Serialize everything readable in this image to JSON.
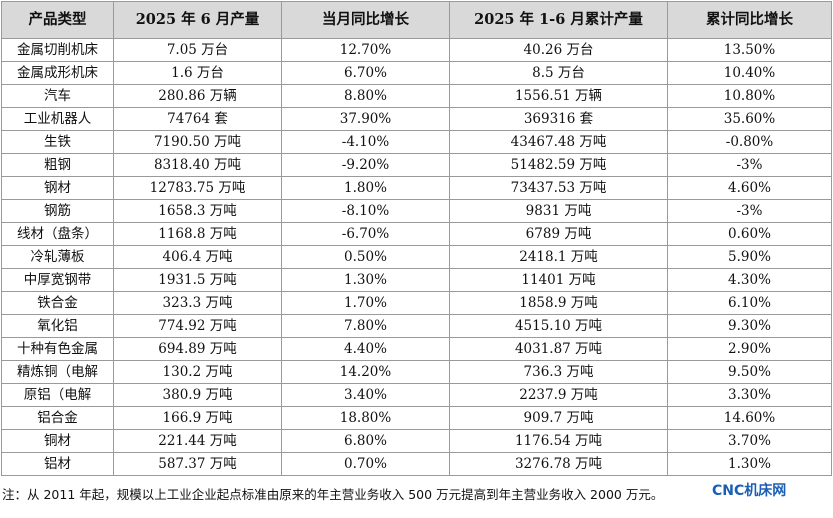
{
  "table": {
    "headers": [
      "产品类型",
      "2025 年 6 月产量",
      "当月同比增长",
      "2025 年 1-6 月累计产量",
      "累计同比增长"
    ],
    "rows": [
      [
        "金属切削机床",
        "7.05 万台",
        "12.70%",
        "40.26 万台",
        "13.50%"
      ],
      [
        "金属成形机床",
        "1.6 万台",
        "6.70%",
        "8.5 万台",
        "10.40%"
      ],
      [
        "汽车",
        "280.86 万辆",
        "8.80%",
        "1556.51 万辆",
        "10.80%"
      ],
      [
        "工业机器人",
        "74764 套",
        "37.90%",
        "369316 套",
        "35.60%"
      ],
      [
        "生铁",
        "7190.50 万吨",
        "-4.10%",
        "43467.48 万吨",
        "-0.80%"
      ],
      [
        "粗钢",
        "8318.40 万吨",
        "-9.20%",
        "51482.59 万吨",
        "-3%"
      ],
      [
        "钢材",
        "12783.75 万吨",
        "1.80%",
        "73437.53 万吨",
        "4.60%"
      ],
      [
        "钢筋",
        "1658.3 万吨",
        "-8.10%",
        "9831 万吨",
        "-3%"
      ],
      [
        "线材（盘条）",
        "1168.8 万吨",
        "-6.70%",
        "6789 万吨",
        "0.60%"
      ],
      [
        "冷轧薄板",
        "406.4 万吨",
        "0.50%",
        "2418.1 万吨",
        "5.90%"
      ],
      [
        "中厚宽钢带",
        "1931.5 万吨",
        "1.30%",
        "11401 万吨",
        "4.30%"
      ],
      [
        "铁合金",
        "323.3 万吨",
        "1.70%",
        "1858.9 万吨",
        "6.10%"
      ],
      [
        "氧化铝",
        "774.92 万吨",
        "7.80%",
        "4515.10 万吨",
        "9.30%"
      ],
      [
        "十种有色金属",
        "694.89 万吨",
        "4.40%",
        "4031.87 万吨",
        "2.90%"
      ],
      [
        "精炼铜（电解",
        "130.2 万吨",
        "14.20%",
        "736.3 万吨",
        "9.50%"
      ],
      [
        "原铝（电解",
        "380.9 万吨",
        "3.40%",
        "2237.9 万吨",
        "3.30%"
      ],
      [
        "铝合金",
        "166.9 万吨",
        "18.80%",
        "909.7 万吨",
        "14.60%"
      ],
      [
        "铜材",
        "221.44 万吨",
        "6.80%",
        "1176.54 万吨",
        "3.70%"
      ],
      [
        "铝材",
        "587.37 万吨",
        "0.70%",
        "3276.78 万吨",
        "1.30%"
      ]
    ]
  },
  "note": "注：从 2011 年起，规模以上工业企业起点标准由原来的年主营业务收入 500 万元提高到年主营业务收入 2000 万元。",
  "brand": {
    "label": "CNC机床网",
    "color": "#1a5fb4"
  },
  "colors": {
    "header_bg": "#d9d9d9",
    "border": "#9a9a9a"
  }
}
